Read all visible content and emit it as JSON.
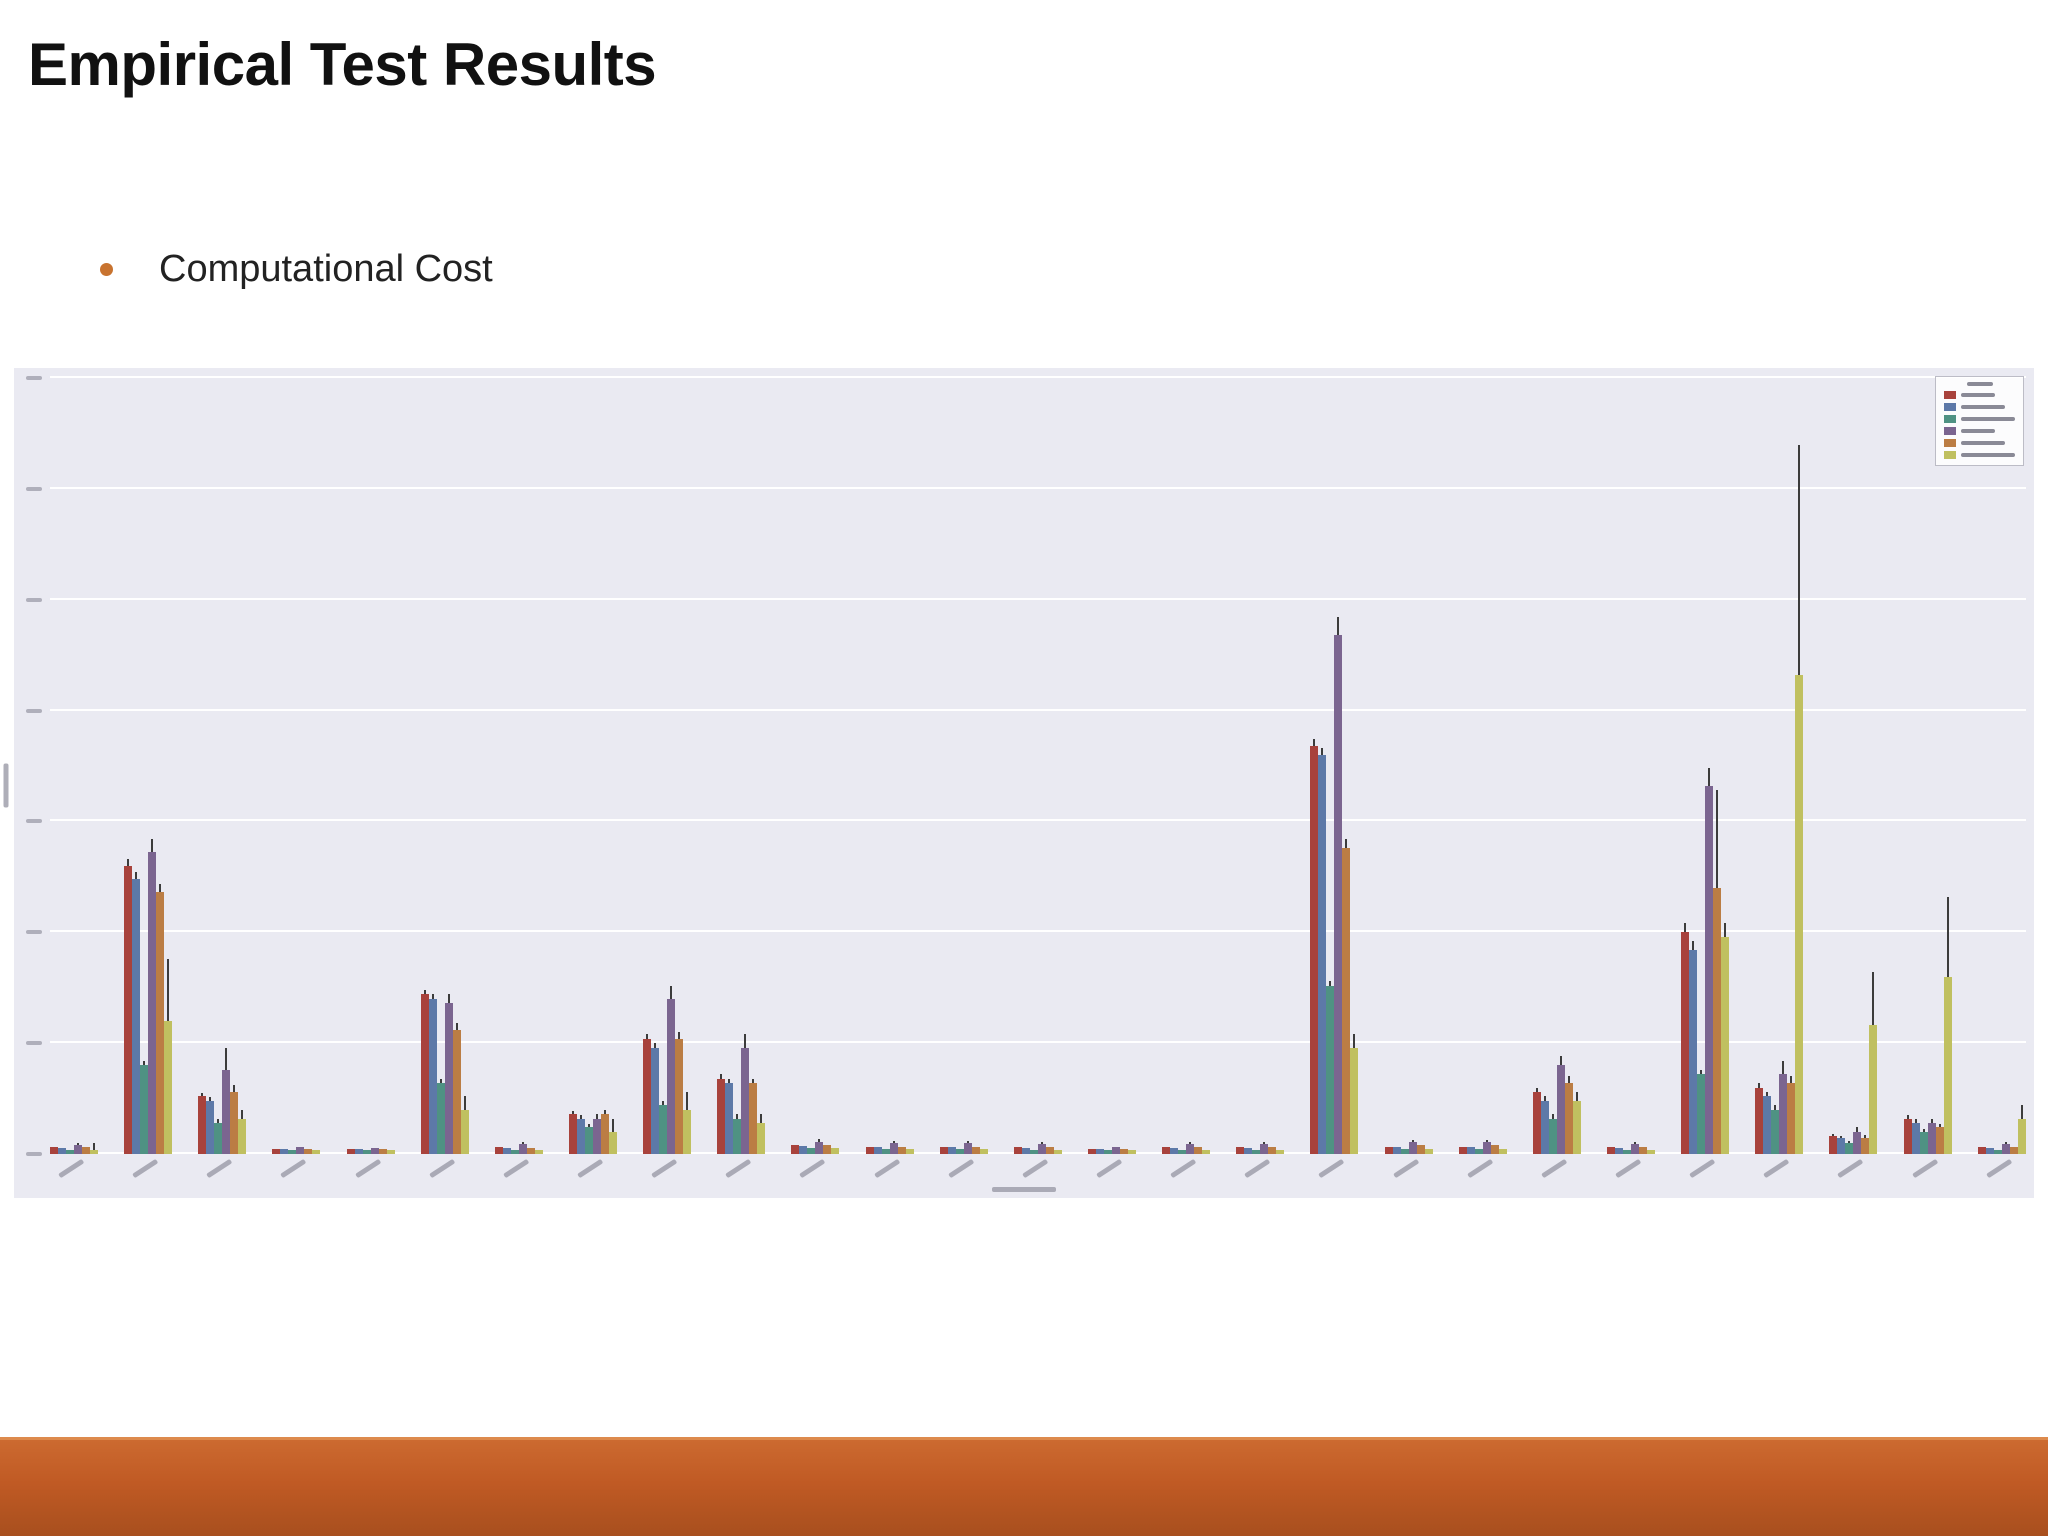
{
  "slide": {
    "title": "Empirical Test Results",
    "bullet": "Computational Cost",
    "colors": {
      "bullet_accent": "#c8732f",
      "footer_orange_top": "#cc6a30",
      "footer_orange_bottom": "#a84f1e",
      "title_text": "#111111"
    }
  },
  "chart_data": {
    "type": "bar",
    "title": "",
    "xlabel": "",
    "ylabel": "",
    "note": "Embedded low-resolution grouped bar chart with error bars; axis tick labels, axis titles and legend text are illegible in the source image. Values are estimated in relative units from bar heights.",
    "ylim": [
      0,
      175
    ],
    "gridline_step": 25,
    "grid": true,
    "background": "#eaeaf2",
    "legend_position": "top-right",
    "series": [
      {
        "name": "Series 1",
        "color": "#a8423c"
      },
      {
        "name": "Series 2",
        "color": "#5d79a8"
      },
      {
        "name": "Series 3",
        "color": "#4f9283"
      },
      {
        "name": "Series 4",
        "color": "#7b6590"
      },
      {
        "name": "Series 5",
        "color": "#bb7d44"
      },
      {
        "name": "Series 6",
        "color": "#c0c060"
      }
    ],
    "categories": [
      "",
      "",
      "",
      "",
      "",
      "",
      "",
      "",
      "",
      "",
      "",
      "",
      "",
      "",
      "",
      "",
      "",
      "",
      "",
      "",
      "",
      "",
      "",
      "",
      "",
      "",
      ""
    ],
    "groups": [
      {
        "values": [
          1.5,
          1.4,
          1.0,
          2.0,
          1.5,
          1.0
        ],
        "errors": [
          0.3,
          0.3,
          0.3,
          0.5,
          0.3,
          1.5
        ]
      },
      {
        "values": [
          65,
          62,
          20,
          68,
          59,
          30
        ],
        "errors": [
          1.5,
          1.5,
          1.0,
          3.0,
          2.0,
          14
        ]
      },
      {
        "values": [
          13,
          12,
          7,
          19,
          14,
          8
        ],
        "errors": [
          0.8,
          0.8,
          0.8,
          5.0,
          1.5,
          2.0
        ]
      },
      {
        "values": [
          1.2,
          1.1,
          0.8,
          1.6,
          1.2,
          0.8
        ],
        "errors": [
          0.3,
          0.3,
          0.3,
          0.4,
          0.3,
          0.3
        ]
      },
      {
        "values": [
          1.2,
          1.1,
          0.8,
          1.4,
          1.2,
          0.8
        ],
        "errors": [
          0.3,
          0.3,
          0.3,
          0.4,
          0.3,
          0.3
        ]
      },
      {
        "values": [
          36,
          35,
          16,
          34,
          28,
          10
        ],
        "errors": [
          1.0,
          1.0,
          1.0,
          2.0,
          1.5,
          3.0
        ]
      },
      {
        "values": [
          1.6,
          1.4,
          1.0,
          2.2,
          1.4,
          1.0
        ],
        "errors": [
          0.3,
          0.3,
          0.3,
          0.5,
          0.3,
          0.3
        ]
      },
      {
        "values": [
          9,
          8,
          6,
          8,
          9,
          5
        ],
        "errors": [
          0.8,
          0.8,
          0.8,
          1.0,
          1.0,
          3.0
        ]
      },
      {
        "values": [
          26,
          24,
          11,
          35,
          26,
          10
        ],
        "errors": [
          1.0,
          1.0,
          1.0,
          3.0,
          1.5,
          4.0
        ]
      },
      {
        "values": [
          17,
          16,
          8,
          24,
          16,
          7
        ],
        "errors": [
          1.0,
          1.0,
          1.0,
          3.0,
          1.0,
          2.0
        ]
      },
      {
        "values": [
          2.0,
          1.8,
          1.4,
          2.8,
          2.0,
          1.4
        ],
        "errors": [
          0.4,
          0.4,
          0.4,
          0.5,
          0.4,
          0.4
        ]
      },
      {
        "values": [
          1.6,
          1.5,
          1.1,
          2.4,
          1.6,
          1.1
        ],
        "errors": [
          0.3,
          0.3,
          0.3,
          0.5,
          0.3,
          0.3
        ]
      },
      {
        "values": [
          1.6,
          1.5,
          1.1,
          2.4,
          1.6,
          1.1
        ],
        "errors": [
          0.3,
          0.3,
          0.3,
          0.5,
          0.3,
          0.3
        ]
      },
      {
        "values": [
          1.5,
          1.4,
          1.0,
          2.2,
          1.6,
          1.0
        ],
        "errors": [
          0.3,
          0.3,
          0.3,
          0.5,
          0.3,
          0.3
        ]
      },
      {
        "values": [
          1.2,
          1.1,
          0.9,
          1.6,
          1.2,
          0.9
        ],
        "errors": [
          0.3,
          0.3,
          0.3,
          0.4,
          0.3,
          0.3
        ]
      },
      {
        "values": [
          1.5,
          1.4,
          1.0,
          2.2,
          1.5,
          1.0
        ],
        "errors": [
          0.3,
          0.3,
          0.3,
          0.5,
          0.3,
          0.3
        ]
      },
      {
        "values": [
          1.6,
          1.4,
          1.0,
          2.2,
          1.6,
          1.0
        ],
        "errors": [
          0.3,
          0.3,
          0.3,
          0.5,
          0.3,
          0.3
        ]
      },
      {
        "values": [
          92,
          90,
          38,
          117,
          69,
          24
        ],
        "errors": [
          1.5,
          1.5,
          1.0,
          4.0,
          2.0,
          3.0
        ]
      },
      {
        "values": [
          1.6,
          1.5,
          1.1,
          2.6,
          2.0,
          1.1
        ],
        "errors": [
          0.3,
          0.3,
          0.3,
          0.5,
          0.4,
          0.3
        ]
      },
      {
        "values": [
          1.6,
          1.5,
          1.1,
          2.6,
          2.0,
          1.1
        ],
        "errors": [
          0.3,
          0.3,
          0.3,
          0.5,
          0.4,
          0.3
        ]
      },
      {
        "values": [
          14,
          12,
          8,
          20,
          16,
          12
        ],
        "errors": [
          1.0,
          1.0,
          1.0,
          2.0,
          1.5,
          2.0
        ]
      },
      {
        "values": [
          1.6,
          1.4,
          1.0,
          2.2,
          1.6,
          1.0
        ],
        "errors": [
          0.3,
          0.3,
          0.3,
          0.5,
          0.3,
          0.3
        ]
      },
      {
        "values": [
          50,
          46,
          18,
          83,
          60,
          49
        ],
        "errors": [
          2.0,
          2.0,
          1.0,
          4.0,
          22,
          3.0
        ]
      },
      {
        "values": [
          15,
          13,
          10,
          18,
          16,
          108
        ],
        "errors": [
          1.0,
          1.0,
          1.0,
          3.0,
          1.5,
          52
        ]
      },
      {
        "values": [
          4,
          3.5,
          2.5,
          5,
          3.5,
          29
        ],
        "errors": [
          0.6,
          0.6,
          0.5,
          1.0,
          0.8,
          12
        ]
      },
      {
        "values": [
          8,
          7,
          5,
          7,
          6,
          40
        ],
        "errors": [
          0.8,
          0.8,
          0.6,
          1.0,
          0.8,
          18
        ]
      },
      {
        "values": [
          1.6,
          1.4,
          1.0,
          2.2,
          1.6,
          8
        ],
        "errors": [
          0.3,
          0.3,
          0.3,
          0.5,
          0.4,
          3.0
        ]
      }
    ]
  }
}
